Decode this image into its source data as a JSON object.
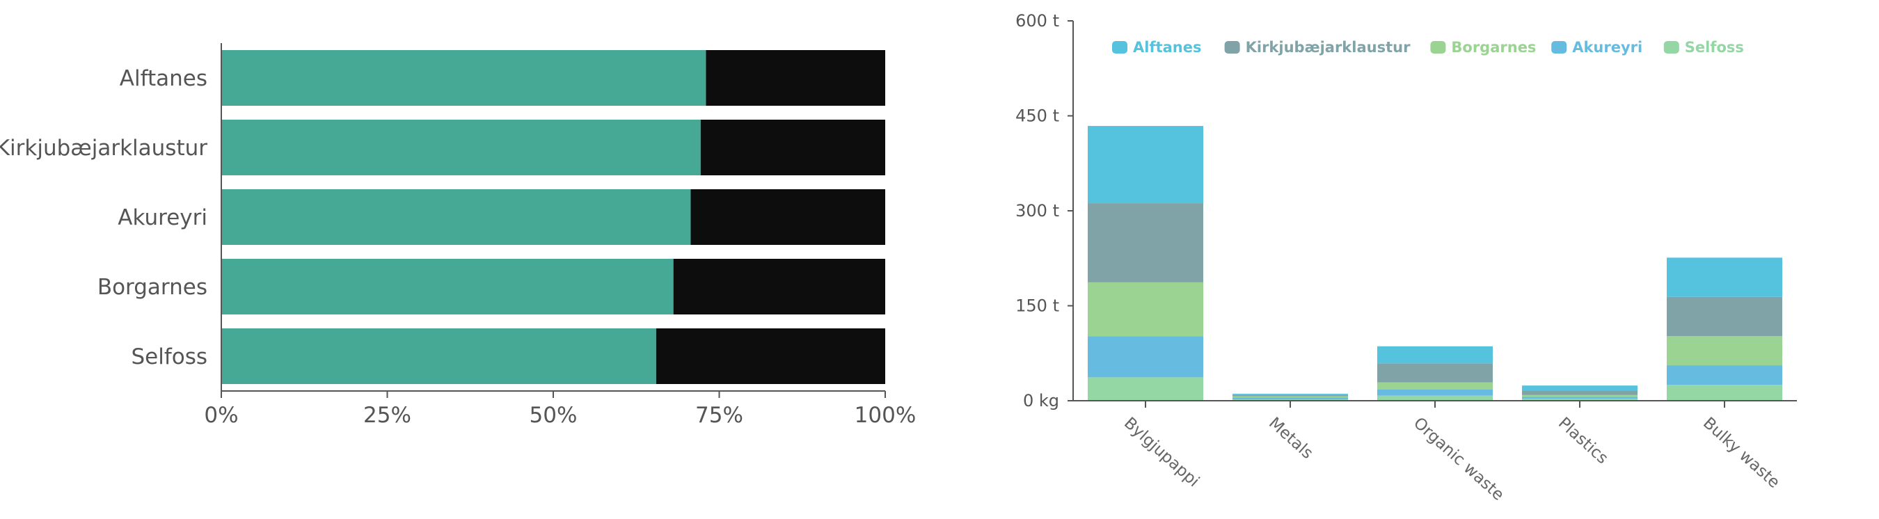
{
  "chart_data": [
    {
      "type": "bar",
      "orientation": "horizontal",
      "stacked": true,
      "normalized": true,
      "categories": [
        "Alftanes",
        "Kirkjubæjarklaustur",
        "Akureyri",
        "Borgarnes",
        "Selfoss"
      ],
      "series": [
        {
          "values": [
            73,
            72.2,
            70.7,
            68.1,
            65.5
          ],
          "color": "#45a996"
        },
        {
          "values": [
            27,
            27.8,
            29.3,
            31.9,
            34.5
          ],
          "color": "#0d0d0d"
        }
      ],
      "xlim": [
        0,
        100
      ],
      "xticks": [
        "0%",
        "25%",
        "50%",
        "75%",
        "100%"
      ],
      "grid": false
    },
    {
      "type": "bar",
      "orientation": "vertical",
      "stacked": true,
      "categories": [
        "Bylgjupappi",
        "Metals",
        "Organic waste",
        "Plastics",
        "Bulky waste"
      ],
      "series": [
        {
          "name": "Selfoss",
          "values": [
            37,
            2,
            8,
            3,
            25
          ],
          "color": "#94d6a4"
        },
        {
          "name": "Akureyri",
          "values": [
            65,
            3,
            10,
            3,
            31
          ],
          "color": "#66bce0"
        },
        {
          "name": "Borgarnes",
          "values": [
            85,
            2,
            11,
            3,
            46
          ],
          "color": "#9bd393"
        },
        {
          "name": "Kirkjubæjarklaustur",
          "values": [
            125,
            2,
            30,
            7,
            62
          ],
          "color": "#7fa3a6"
        },
        {
          "name": "Alftanes",
          "values": [
            122,
            2,
            27,
            8,
            62
          ],
          "color": "#55c2de"
        }
      ],
      "legend_order": [
        "Alftanes",
        "Kirkjubæjarklaustur",
        "Borgarnes",
        "Akureyri",
        "Selfoss"
      ],
      "ylim": [
        0,
        600
      ],
      "yticks": [
        "0 kg",
        "150 t",
        "300 t",
        "450 t",
        "600 t"
      ],
      "legend_position": "top-left",
      "grid": false
    }
  ]
}
